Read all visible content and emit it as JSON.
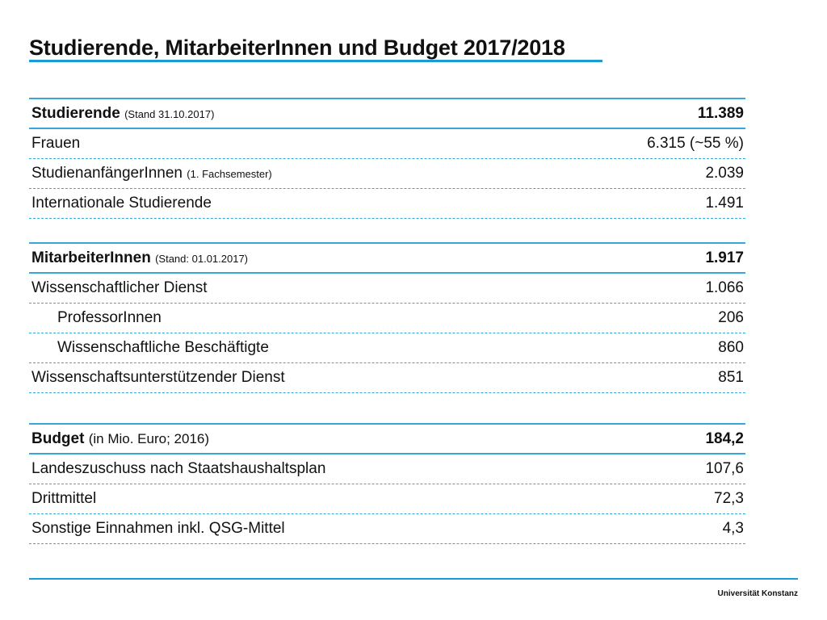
{
  "title": "Studierende, MitarbeiterInnen und Budget 2017/2018",
  "sections": [
    {
      "heading": {
        "label": "Studierende",
        "note": "(Stand 31.10.2017)",
        "value": "11.389"
      },
      "rows": [
        {
          "label": "Frauen",
          "note": "",
          "value": "6.315 (~55 %)"
        },
        {
          "label": "StudienanfängerInnen",
          "note": "(1. Fachsemester)",
          "value": "2.039"
        },
        {
          "label": "Internationale Studierende",
          "note": "",
          "value": "1.491"
        }
      ]
    },
    {
      "heading": {
        "label": "MitarbeiterInnen",
        "note": "(Stand: 01.01.2017)",
        "value": "1.917"
      },
      "rows": [
        {
          "label": "Wissenschaftlicher Dienst",
          "value": "1.066"
        },
        {
          "label": "ProfessorInnen",
          "value": "206",
          "indent": true
        },
        {
          "label": "Wissenschaftliche Beschäftigte",
          "value": "860",
          "indent": true
        },
        {
          "label": "Wissenschaftsunterstützender Dienst",
          "value": "851"
        }
      ]
    },
    {
      "heading": {
        "label": "Budget",
        "note": "(in Mio. Euro; 2016)",
        "value": "184,2"
      },
      "rows": [
        {
          "label": "Landeszuschuss nach Staatshaushaltsplan",
          "value": "107,6"
        },
        {
          "label": "Drittmittel",
          "value": "72,3"
        },
        {
          "label": "Sonstige Einnahmen inkl. QSG-Mittel",
          "value": "4,3"
        }
      ]
    }
  ],
  "footer": "Universität Konstanz",
  "colors": {
    "accent": "#1a9ad6",
    "divider": "#39a6d8"
  }
}
